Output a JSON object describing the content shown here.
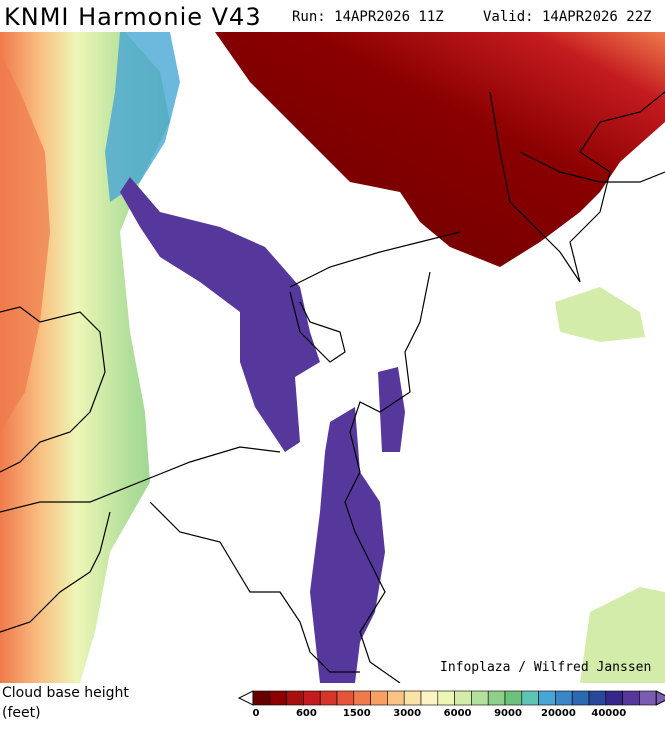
{
  "header": {
    "title": "KNMI Harmonie V43",
    "run": "Run: 14APR2026 11Z",
    "valid": "Valid: 14APR2026 22Z"
  },
  "credit": "Infoplaza / Wilfred Janssen",
  "legend": {
    "title": "Cloud base height",
    "unit": "(feet)",
    "colors": [
      "#680000",
      "#8a0000",
      "#a8100f",
      "#c41b1f",
      "#d8352a",
      "#e6553a",
      "#f07a4c",
      "#f6a062",
      "#f9c384",
      "#fbe2a6",
      "#fcf4c2",
      "#eef6b6",
      "#d3ecaa",
      "#b3e09c",
      "#8ed08a",
      "#6cc27c",
      "#5dc4b6",
      "#48a6d4",
      "#3a86c6",
      "#2d68b2",
      "#29489c",
      "#36288a",
      "#56389c",
      "#7a5cb2"
    ],
    "ticks": [
      0,
      600,
      1500,
      3000,
      6000,
      9000,
      20000,
      40000
    ]
  }
}
